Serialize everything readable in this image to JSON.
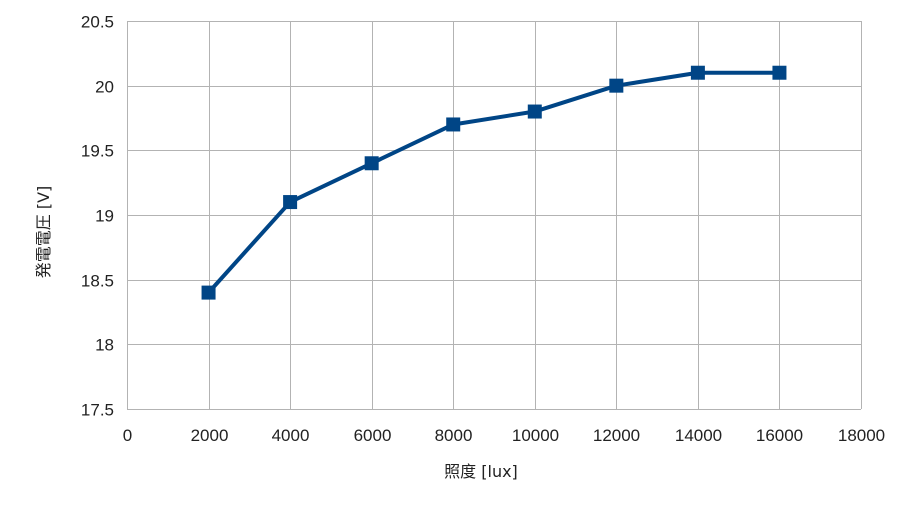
{
  "chart_data": {
    "type": "line",
    "xlabel": "照度 [lux]",
    "ylabel": "発電電圧 [V]",
    "xlim": [
      0,
      18000
    ],
    "ylim": [
      17.5,
      20.5
    ],
    "x_ticks": [
      0,
      2000,
      4000,
      6000,
      8000,
      10000,
      12000,
      14000,
      16000,
      18000
    ],
    "y_ticks": [
      17.5,
      18,
      18.5,
      19,
      19.5,
      20,
      20.5
    ],
    "grid": true,
    "legend": "none",
    "series": [
      {
        "x": [
          2000,
          4000,
          6000,
          8000,
          10000,
          12000,
          14000,
          16000
        ],
        "values": [
          18.4,
          19.1,
          19.4,
          19.7,
          19.8,
          20.0,
          20.1,
          20.1
        ],
        "color": "#004586",
        "marker": "square"
      }
    ]
  }
}
